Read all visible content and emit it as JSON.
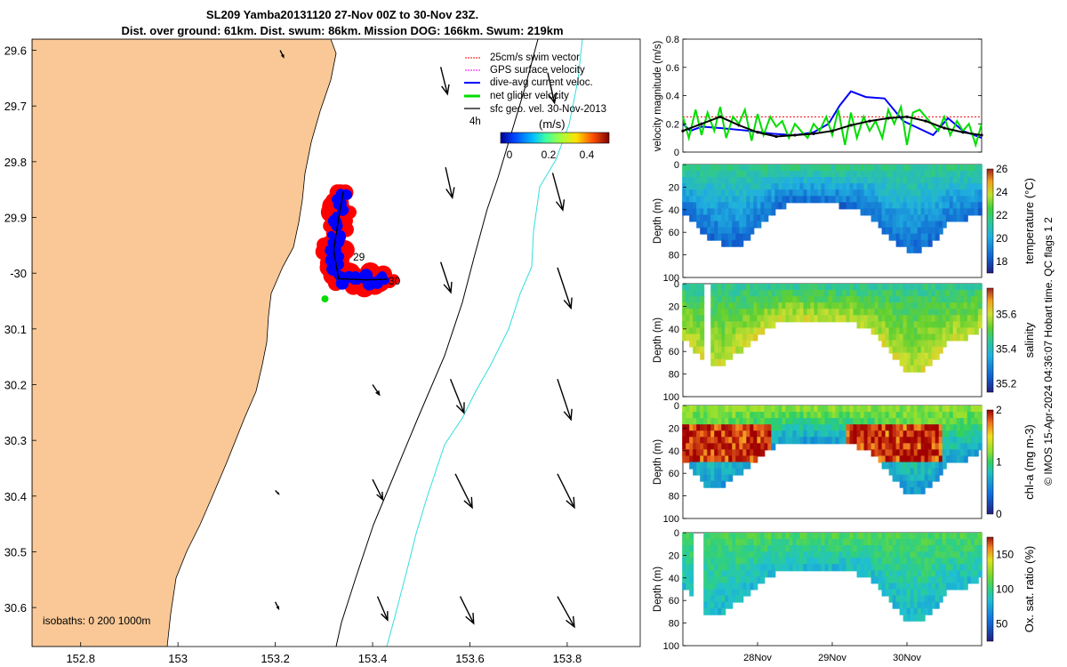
{
  "title": {
    "line1": "SL209 Yamba20131120 27-Nov 00Z to 30-Nov 23Z.",
    "line2": "Dist. over ground: 61km. Dist. swum: 86km. Mission DOG: 166km. Swum: 219km"
  },
  "colors": {
    "land": "#f9c896",
    "swim_vector": "#ff0000",
    "gps_velocity": "#ff00ff",
    "dive_avg_current": "#0000ff",
    "net_glider_velocity": "#00dd00",
    "sfc_geo_vel": "#000000",
    "isobath_200": "#000000",
    "isobath_1000": "#33dddd"
  },
  "footer_text": "© IMOS 15-Apr-2024 04:36:07 Hobart time. QC flags 1  2",
  "chart_data": [
    {
      "type": "scatter",
      "name": "map",
      "xlim": [
        152.7,
        153.95
      ],
      "ylim": [
        -30.67,
        -29.58
      ],
      "xticks": [
        152.8,
        153,
        153.2,
        153.4,
        153.6,
        153.8
      ],
      "xtick_labels": [
        "152.8",
        "153",
        "153.2",
        "153.4",
        "153.6",
        "153.8"
      ],
      "yticks": [
        -29.6,
        -29.7,
        -29.8,
        -29.9,
        -30.0,
        -30.1,
        -30.2,
        -30.3,
        -30.4,
        -30.5,
        -30.6
      ],
      "ytick_labels": [
        "29.6",
        "29.7",
        "29.8",
        "29.9",
        "-30",
        "30.1",
        "30.2",
        "30.3",
        "30.4",
        "30.5",
        "30.6"
      ],
      "legend": {
        "placement": "top-right",
        "entries": [
          "25cm/s swim vector",
          "GPS surface velocity",
          "dive-avg current veloc.",
          "net glider velocity",
          "sfc geo. vel. 30-Nov-2013"
        ],
        "duration_label": "4h"
      },
      "colorbar": {
        "label": "(m/s)",
        "ticks": [
          0,
          0.2,
          0.4
        ],
        "tick_labels": [
          "0",
          "0.2",
          "0.4"
        ],
        "range": [
          0,
          0.5
        ]
      },
      "isobath_label": "isobaths: 0   200  1000m",
      "track_day_labels": [
        "29",
        "30"
      ],
      "glider_track": [
        [
          153.34,
          -29.853
        ],
        [
          153.33,
          -29.903
        ],
        [
          153.32,
          -29.958
        ],
        [
          153.33,
          -30.01
        ],
        [
          153.385,
          -30.012
        ],
        [
          153.43,
          -30.011
        ]
      ],
      "geo_velocity_vectors": [
        {
          "lon": 153.54,
          "lat": -29.63,
          "u": 0.02,
          "v": -0.08
        },
        {
          "lon": 153.76,
          "lat": -29.64,
          "u": 0.02,
          "v": -0.09
        },
        {
          "lon": 153.55,
          "lat": -29.81,
          "u": 0.02,
          "v": -0.09
        },
        {
          "lon": 153.77,
          "lat": -29.82,
          "u": 0.03,
          "v": -0.11
        },
        {
          "lon": 153.54,
          "lat": -29.98,
          "u": 0.03,
          "v": -0.09
        },
        {
          "lon": 153.78,
          "lat": -29.99,
          "u": 0.04,
          "v": -0.12
        },
        {
          "lon": 153.4,
          "lat": -30.2,
          "u": 0.02,
          "v": -0.03
        },
        {
          "lon": 153.56,
          "lat": -30.19,
          "u": 0.04,
          "v": -0.1
        },
        {
          "lon": 153.78,
          "lat": -30.19,
          "u": 0.04,
          "v": -0.12
        },
        {
          "lon": 153.4,
          "lat": -30.37,
          "u": 0.03,
          "v": -0.06
        },
        {
          "lon": 153.57,
          "lat": -30.36,
          "u": 0.05,
          "v": -0.1
        },
        {
          "lon": 153.78,
          "lat": -30.36,
          "u": 0.05,
          "v": -0.1
        },
        {
          "lon": 153.2,
          "lat": -30.39,
          "u": 0.01,
          "v": -0.01
        },
        {
          "lon": 153.21,
          "lat": -29.6,
          "u": 0.01,
          "v": -0.02
        },
        {
          "lon": 153.2,
          "lat": -30.59,
          "u": 0.01,
          "v": -0.02
        },
        {
          "lon": 153.41,
          "lat": -30.58,
          "u": 0.03,
          "v": -0.07
        },
        {
          "lon": 153.58,
          "lat": -30.58,
          "u": 0.04,
          "v": -0.08
        },
        {
          "lon": 153.78,
          "lat": -30.58,
          "u": 0.05,
          "v": -0.09
        }
      ]
    },
    {
      "type": "line",
      "name": "velocity",
      "ylabel": "velocity magnitude (m/s)",
      "xlim": [
        0,
        4
      ],
      "ylim": [
        0,
        0.8
      ],
      "yticks": [
        0,
        0.2,
        0.4,
        0.6,
        0.8
      ],
      "ytick_labels": [
        "0",
        "0.2",
        "0.4",
        "0.6",
        "0.8"
      ],
      "series": [
        {
          "color": "#ff0000",
          "style": "dotted",
          "x": [
            0,
            4
          ],
          "values": [
            0.25,
            0.25
          ]
        },
        {
          "color": "#0000ff",
          "x": [
            0,
            0.1,
            0.25,
            0.5,
            0.9,
            1.2,
            1.5,
            1.75,
            1.95,
            2.1,
            2.25,
            2.45,
            2.7,
            2.95,
            3.15,
            3.35,
            3.55,
            3.75,
            3.9,
            4.0
          ],
          "values": [
            0.2,
            0.15,
            0.18,
            0.17,
            0.15,
            0.13,
            0.12,
            0.14,
            0.2,
            0.33,
            0.43,
            0.39,
            0.38,
            0.22,
            0.17,
            0.12,
            0.24,
            0.15,
            0.12,
            0.1
          ]
        },
        {
          "color": "#00dd00",
          "x": [
            0,
            0.08,
            0.17,
            0.25,
            0.33,
            0.42,
            0.5,
            0.58,
            0.67,
            0.75,
            0.83,
            0.92,
            1.0,
            1.08,
            1.17,
            1.25,
            1.33,
            1.42,
            1.5,
            1.58,
            1.67,
            1.75,
            1.83,
            1.92,
            2.0,
            2.08,
            2.17,
            2.25,
            2.33,
            2.42,
            2.5,
            2.58,
            2.67,
            2.75,
            2.83,
            2.92,
            3.0,
            3.08,
            3.17,
            3.25,
            3.33,
            3.42,
            3.5,
            3.58,
            3.67,
            3.75,
            3.83,
            3.92,
            4.0
          ],
          "values": [
            0.25,
            0.1,
            0.3,
            0.12,
            0.28,
            0.15,
            0.32,
            0.1,
            0.25,
            0.2,
            0.3,
            0.08,
            0.27,
            0.12,
            0.25,
            0.18,
            0.22,
            0.1,
            0.2,
            0.15,
            0.1,
            0.2,
            0.15,
            0.25,
            0.12,
            0.3,
            0.05,
            0.28,
            0.1,
            0.25,
            0.15,
            0.22,
            0.1,
            0.3,
            0.2,
            0.32,
            0.05,
            0.28,
            0.3,
            0.25,
            0.2,
            0.15,
            0.25,
            0.12,
            0.22,
            0.15,
            0.2,
            0.05,
            0.2
          ]
        },
        {
          "color": "#000000",
          "x": [
            0,
            0.25,
            0.5,
            0.75,
            1.0,
            1.25,
            1.5,
            1.75,
            2.0,
            2.25,
            2.5,
            2.75,
            3.0,
            3.25,
            3.5,
            3.75,
            4.0
          ],
          "values": [
            0.15,
            0.2,
            0.25,
            0.19,
            0.14,
            0.11,
            0.12,
            0.13,
            0.15,
            0.19,
            0.22,
            0.24,
            0.25,
            0.22,
            0.17,
            0.14,
            0.12
          ]
        }
      ]
    },
    {
      "type": "heatmap",
      "name": "temperature",
      "ylabel": "Depth (m)",
      "clabel": "temperature (°C)",
      "ylim": [
        100,
        0
      ],
      "yticks": [
        0,
        20,
        40,
        60,
        80,
        100
      ],
      "crange": [
        17,
        26
      ],
      "cticks": [
        18,
        20,
        22,
        24,
        26
      ],
      "profile_x": [
        0.05,
        0.3,
        0.55,
        0.8,
        1.05,
        1.3,
        1.55,
        1.8,
        2.05,
        2.3,
        2.55,
        2.8,
        3.05,
        3.3,
        3.55,
        3.8,
        4.0
      ],
      "bottom_depth": [
        40,
        60,
        68,
        68,
        50,
        35,
        30,
        32,
        33,
        35,
        45,
        65,
        75,
        70,
        50,
        45,
        40
      ],
      "surface_value": 21.5,
      "bottom_value": 18.5
    },
    {
      "type": "heatmap",
      "name": "salinity",
      "ylabel": "Depth (m)",
      "clabel": "salinity",
      "ylim": [
        100,
        0
      ],
      "yticks": [
        0,
        20,
        40,
        60,
        80,
        100
      ],
      "crange": [
        35.15,
        35.75
      ],
      "cticks": [
        35.2,
        35.4,
        35.6
      ],
      "profile_x": [
        0.05,
        0.3,
        0.55,
        0.8,
        1.05,
        1.3,
        1.55,
        1.8,
        2.05,
        2.3,
        2.55,
        2.8,
        3.05,
        3.3,
        3.55,
        3.8,
        4.0
      ],
      "bottom_depth": [
        45,
        70,
        68,
        55,
        40,
        30,
        28,
        30,
        30,
        32,
        40,
        60,
        78,
        70,
        50,
        45,
        38
      ],
      "surface_value": 35.45,
      "bottom_value": 35.6,
      "gap_x": [
        0.28,
        0.4
      ]
    },
    {
      "type": "heatmap",
      "name": "chl-a",
      "ylabel": "Depth (m)",
      "clabel": "chl-a (mg m-3)",
      "ylim": [
        100,
        0
      ],
      "yticks": [
        0,
        20,
        40,
        60,
        80,
        100
      ],
      "crange": [
        0,
        2
      ],
      "cticks": [
        0,
        1,
        2
      ],
      "profile_x": [
        0.05,
        0.3,
        0.55,
        0.8,
        1.05,
        1.3,
        1.55,
        1.8,
        2.05,
        2.3,
        2.55,
        2.8,
        3.05,
        3.3,
        3.55,
        3.8,
        4.0
      ],
      "bottom_depth": [
        45,
        70,
        68,
        55,
        40,
        30,
        28,
        30,
        30,
        32,
        40,
        60,
        78,
        70,
        50,
        45,
        38
      ],
      "surface_value": 1.2,
      "bottom_value": 0.6
    },
    {
      "type": "heatmap",
      "name": "oxygen",
      "ylabel": "Depth (m)",
      "clabel": "Ox. sat. ratio (%)",
      "ylim": [
        100,
        0
      ],
      "yticks": [
        0,
        20,
        40,
        60,
        80,
        100
      ],
      "crange": [
        25,
        175
      ],
      "cticks": [
        50,
        100,
        150
      ],
      "profile_x": [
        0.05,
        0.3,
        0.55,
        0.8,
        1.05,
        1.3,
        1.55,
        1.8,
        2.05,
        2.3,
        2.55,
        2.8,
        3.05,
        3.3,
        3.55,
        3.8,
        4.0
      ],
      "bottom_depth": [
        45,
        70,
        68,
        55,
        40,
        30,
        28,
        30,
        30,
        32,
        40,
        60,
        78,
        70,
        50,
        45,
        38
      ],
      "surface_value": 108,
      "bottom_value": 82,
      "gap_x": [
        0.15,
        0.3
      ],
      "xticks": [
        1,
        2,
        3
      ],
      "xtick_labels": [
        "28Nov",
        "29Nov",
        "30Nov"
      ]
    }
  ]
}
